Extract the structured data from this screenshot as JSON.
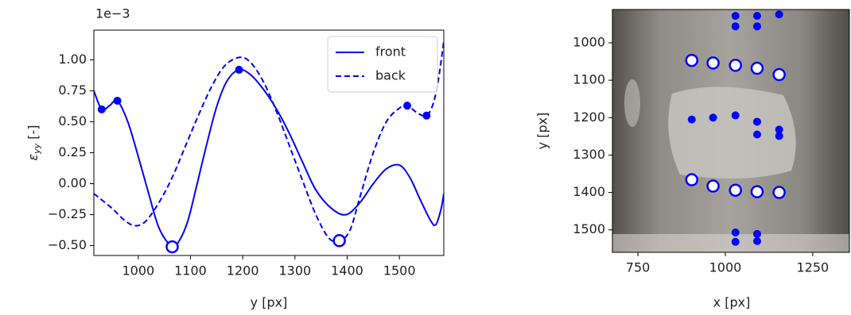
{
  "chart_data": [
    {
      "type": "line",
      "offset_label": "1e−3",
      "xlabel": "y [px]",
      "ylabel_symbol": "ε",
      "ylabel_subscript": "yy",
      "ylabel_unit": "[-]",
      "xlim": [
        915,
        1585
      ],
      "ylim": [
        -0.58,
        1.24
      ],
      "xticks": [
        1000,
        1100,
        1200,
        1300,
        1400,
        1500
      ],
      "yticks": [
        {
          "value": 1,
          "label": "1.00"
        },
        {
          "value": 0.75,
          "label": "0.75"
        },
        {
          "value": 0.5,
          "label": "0.50"
        },
        {
          "value": 0.25,
          "label": "0.25"
        },
        {
          "value": 0,
          "label": "0.00"
        },
        {
          "value": -0.25,
          "label": "−0.25"
        },
        {
          "value": -0.5,
          "label": "−0.50"
        }
      ],
      "legend": "upper right",
      "series": [
        {
          "name": "front",
          "color": "#0000ff",
          "dash": "solid",
          "x": [
            915,
            930,
            945,
            960,
            980,
            1000,
            1020,
            1040,
            1065,
            1080,
            1095,
            1110,
            1130,
            1150,
            1170,
            1193,
            1215,
            1240,
            1265,
            1290,
            1315,
            1340,
            1370,
            1398,
            1425,
            1450,
            1475,
            1500,
            1520,
            1540,
            1560,
            1570,
            1580,
            1585
          ],
          "values": [
            0.75,
            0.6,
            0.63,
            0.67,
            0.5,
            0.22,
            -0.08,
            -0.36,
            -0.51,
            -0.45,
            -0.3,
            -0.05,
            0.3,
            0.62,
            0.83,
            0.92,
            0.88,
            0.76,
            0.6,
            0.4,
            0.17,
            -0.05,
            -0.2,
            -0.25,
            -0.15,
            0.0,
            0.12,
            0.15,
            0.05,
            -0.13,
            -0.3,
            -0.33,
            -0.2,
            -0.08
          ],
          "dots_x": [
            930,
            960,
            1193
          ],
          "dots_y": [
            0.6,
            0.67,
            0.92
          ],
          "circles_x": [
            1065
          ],
          "circles_y": [
            -0.51
          ]
        },
        {
          "name": "back",
          "color": "#0000ff",
          "dash": "dashed",
          "x": [
            915,
            950,
            975,
            995,
            1015,
            1040,
            1065,
            1090,
            1115,
            1140,
            1165,
            1193,
            1215,
            1240,
            1265,
            1290,
            1315,
            1340,
            1365,
            1385,
            1405,
            1425,
            1450,
            1475,
            1500,
            1515,
            1535,
            1552,
            1565,
            1575,
            1585
          ],
          "values": [
            -0.08,
            -0.2,
            -0.3,
            -0.34,
            -0.3,
            -0.15,
            0.05,
            0.3,
            0.55,
            0.78,
            0.95,
            1.02,
            0.98,
            0.82,
            0.58,
            0.3,
            0.02,
            -0.25,
            -0.44,
            -0.46,
            -0.38,
            -0.1,
            0.25,
            0.5,
            0.61,
            0.63,
            0.57,
            0.55,
            0.65,
            0.85,
            1.15
          ],
          "dots_x": [
            1515,
            1552
          ],
          "dots_y": [
            0.63,
            0.55
          ],
          "circles_x": [
            1385
          ],
          "circles_y": [
            -0.46
          ]
        }
      ]
    },
    {
      "type": "scatter",
      "xlabel": "x [px]",
      "ylabel": "y [px]",
      "xlim": [
        677,
        1355
      ],
      "ylim": [
        1560,
        911
      ],
      "xticks": [
        750,
        1000,
        1250
      ],
      "yticks": [
        1000,
        1100,
        1200,
        1300,
        1400,
        1500
      ],
      "color": "#0000ff",
      "dots_x": [
        1029,
        1029,
        1091,
        1091,
        1154,
        904,
        965,
        1029,
        1091,
        1091,
        1154,
        1154,
        1029,
        1029,
        1091,
        1091
      ],
      "dots_y": [
        928,
        956,
        928,
        956,
        924,
        1205,
        1200,
        1194,
        1211,
        1245,
        1232,
        1249,
        1507,
        1532,
        1511,
        1530
      ],
      "circles_x": [
        904,
        965,
        1029,
        1091,
        1154,
        904,
        965,
        1029,
        1091,
        1154
      ],
      "circles_y": [
        1047,
        1054,
        1060,
        1068,
        1085,
        1366,
        1383,
        1394,
        1398,
        1400
      ]
    }
  ]
}
